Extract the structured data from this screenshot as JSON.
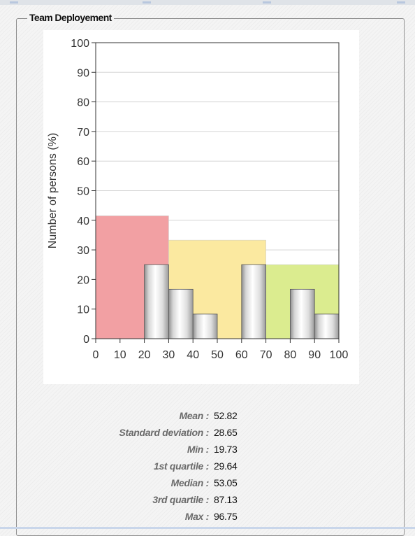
{
  "panel": {
    "title": "Team Deployement"
  },
  "chart_data": {
    "type": "bar",
    "ylabel": "Number of persons (%)",
    "xlim": [
      0,
      100
    ],
    "ylim": [
      0,
      100
    ],
    "x_ticks": [
      "0",
      "10",
      "20",
      "30",
      "40",
      "50",
      "60",
      "70",
      "80",
      "90",
      "100"
    ],
    "y_ticks": [
      "0",
      "10",
      "20",
      "30",
      "40",
      "50",
      "60",
      "70",
      "80",
      "90",
      "100"
    ],
    "grid": true,
    "bands": [
      {
        "x0": 0,
        "x1": 30,
        "value": 41.5,
        "color": "#f2a0a3"
      },
      {
        "x0": 30,
        "x1": 70,
        "value": 33.3,
        "color": "#fbe9a0"
      },
      {
        "x0": 70,
        "x1": 100,
        "value": 25,
        "color": "#dbec8f"
      }
    ],
    "bins": [
      {
        "x0": 20,
        "x1": 30,
        "value": 25
      },
      {
        "x0": 30,
        "x1": 40,
        "value": 16.7
      },
      {
        "x0": 40,
        "x1": 50,
        "value": 8.3
      },
      {
        "x0": 60,
        "x1": 70,
        "value": 25
      },
      {
        "x0": 80,
        "x1": 90,
        "value": 16.7
      },
      {
        "x0": 90,
        "x1": 100,
        "value": 8.3
      }
    ]
  },
  "stats": [
    {
      "label": "Mean :",
      "value": "52.82"
    },
    {
      "label": "Standard deviation :",
      "value": "28.65"
    },
    {
      "label": "Min :",
      "value": "19.73"
    },
    {
      "label": "1st quartile :",
      "value": "29.64"
    },
    {
      "label": "Median :",
      "value": "53.05"
    },
    {
      "label": "3rd quartile :",
      "value": "87.13"
    },
    {
      "label": "Max :",
      "value": "96.75"
    }
  ]
}
